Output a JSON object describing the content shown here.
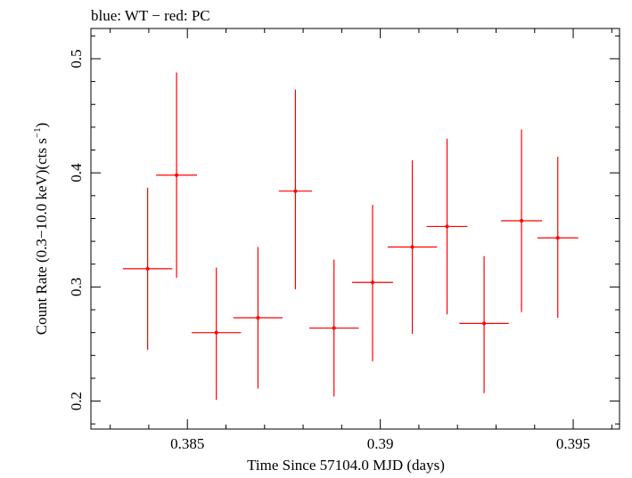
{
  "chart_data": {
    "type": "scatter",
    "title": "blue: WT − red: PC",
    "xlabel": "Time Since 57104.0 MJD (days)",
    "ylabel": {
      "prefix": "Count Rate (0.3−10.0 keV)(cts s",
      "superscript": "−1",
      "suffix": ")"
    },
    "xlim": [
      0.3825,
      0.3962
    ],
    "ylim": [
      0.1755,
      0.5265
    ],
    "xticks": [
      {
        "value": 0.385,
        "label": "0.385"
      },
      {
        "value": 0.39,
        "label": "0.39"
      },
      {
        "value": 0.395,
        "label": "0.395"
      }
    ],
    "yticks": [
      {
        "value": 0.2,
        "label": "0.2"
      },
      {
        "value": 0.3,
        "label": "0.3"
      },
      {
        "value": 0.4,
        "label": "0.4"
      },
      {
        "value": 0.5,
        "label": "0.5"
      }
    ],
    "x_minor_step": 0.001,
    "y_minor_step": 0.02,
    "grid": false,
    "legend": "none",
    "series": [
      {
        "color": "#ff0000",
        "points": [
          {
            "x": 0.38397,
            "xerr": 0.00064,
            "y": 0.316,
            "ylo": 0.245,
            "yhi": 0.387
          },
          {
            "x": 0.38472,
            "xerr": 0.00053,
            "y": 0.398,
            "ylo": 0.308,
            "yhi": 0.488
          },
          {
            "x": 0.38575,
            "xerr": 0.00064,
            "y": 0.26,
            "ylo": 0.201,
            "yhi": 0.317
          },
          {
            "x": 0.38683,
            "xerr": 0.00064,
            "y": 0.273,
            "ylo": 0.211,
            "yhi": 0.335
          },
          {
            "x": 0.3878,
            "xerr": 0.00043,
            "y": 0.384,
            "ylo": 0.298,
            "yhi": 0.473
          },
          {
            "x": 0.3888,
            "xerr": 0.00064,
            "y": 0.264,
            "ylo": 0.204,
            "yhi": 0.324
          },
          {
            "x": 0.3898,
            "xerr": 0.00053,
            "y": 0.304,
            "ylo": 0.235,
            "yhi": 0.372
          },
          {
            "x": 0.39083,
            "xerr": 0.00064,
            "y": 0.335,
            "ylo": 0.259,
            "yhi": 0.411
          },
          {
            "x": 0.39173,
            "xerr": 0.00053,
            "y": 0.353,
            "ylo": 0.276,
            "yhi": 0.43
          },
          {
            "x": 0.39269,
            "xerr": 0.00064,
            "y": 0.268,
            "ylo": 0.207,
            "yhi": 0.327
          },
          {
            "x": 0.39366,
            "xerr": 0.00053,
            "y": 0.358,
            "ylo": 0.278,
            "yhi": 0.438
          },
          {
            "x": 0.3946,
            "xerr": 0.00053,
            "y": 0.343,
            "ylo": 0.273,
            "yhi": 0.414
          }
        ]
      }
    ]
  }
}
